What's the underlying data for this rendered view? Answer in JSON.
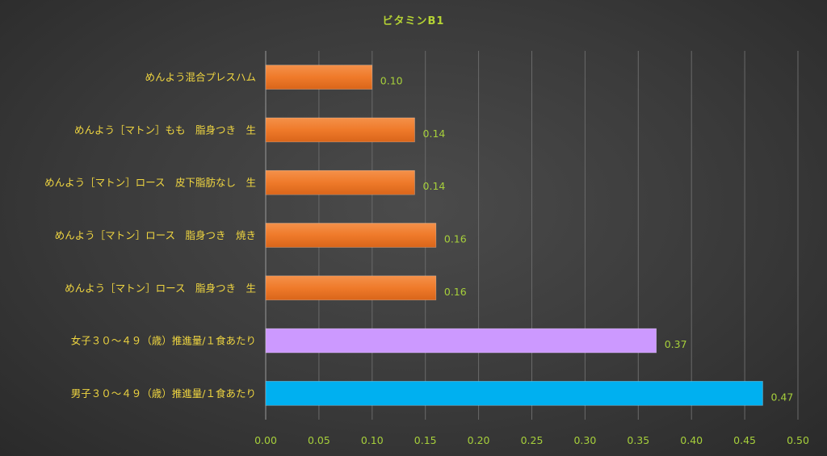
{
  "chart_data": {
    "type": "bar",
    "orientation": "horizontal",
    "title": "ビタミンB1",
    "categories": [
      "めんよう混合プレスハム",
      "めんよう［マトン］もも　脂身つき　生",
      "めんよう［マトン］ロース　皮下脂肪なし　生",
      "めんよう［マトン］ロース　脂身つき　焼き",
      "めんよう［マトン］ロース　脂身つき　生",
      "女子３０～４９（歳）推進量/１食あたり",
      "男子３０～４９（歳）推進量/１食あたり"
    ],
    "values": [
      0.1,
      0.14,
      0.14,
      0.16,
      0.16,
      0.367,
      0.467
    ],
    "data_labels": [
      "0.10",
      "0.14",
      "0.14",
      "0.16",
      "0.16",
      "0.37",
      "0.47"
    ],
    "bar_colors": [
      "#ef7a2a",
      "#ef7a2a",
      "#ef7a2a",
      "#ef7a2a",
      "#ef7a2a",
      "#cc99ff",
      "#00b0f0"
    ],
    "xlim": [
      0,
      0.5
    ],
    "xticks": [
      "0.00",
      "0.05",
      "0.10",
      "0.15",
      "0.20",
      "0.25",
      "0.30",
      "0.35",
      "0.40",
      "0.45",
      "0.50"
    ],
    "grid": true,
    "legend": "none"
  }
}
